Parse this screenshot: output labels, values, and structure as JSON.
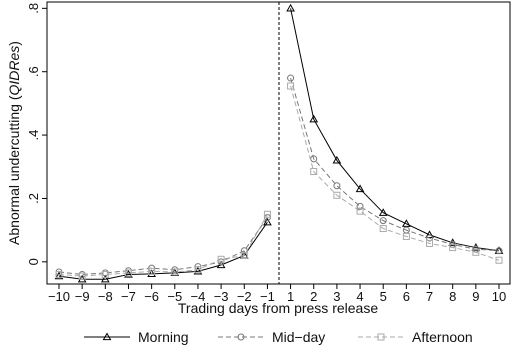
{
  "chart_data": {
    "type": "line",
    "xlabel": "Trading days from press release",
    "ylabel": {
      "prefix": "Abnormal undercutting (",
      "italic": "QIDRes",
      "suffix": ")"
    },
    "x_ticks": [
      "-10",
      "-9",
      "-8",
      "-7",
      "-6",
      "-5",
      "-4",
      "-3",
      "-2",
      "-1",
      "1",
      "2",
      "3",
      "4",
      "5",
      "6",
      "7",
      "8",
      "9",
      "10"
    ],
    "ylim": [
      -0.07,
      0.82
    ],
    "y_ticks": [
      {
        "value": 0,
        "label": "0"
      },
      {
        "value": 0.2,
        "label": ".2"
      },
      {
        "value": 0.4,
        "label": ".4"
      },
      {
        "value": 0.6,
        "label": ".6"
      },
      {
        "value": 0.8,
        "label": ".8"
      }
    ],
    "vertical_divider_between": [
      "-1",
      "1"
    ],
    "grid": false,
    "legend_position": "bottom",
    "series": [
      {
        "name": "Morning",
        "color": "#000000",
        "marker": "triangle",
        "dash": "solid",
        "pre": [
          -0.045,
          -0.055,
          -0.055,
          -0.04,
          -0.038,
          -0.035,
          -0.03,
          -0.01,
          0.02,
          0.125
        ],
        "post": [
          0.8,
          0.45,
          0.32,
          0.23,
          0.155,
          0.12,
          0.085,
          0.06,
          0.045,
          0.035
        ]
      },
      {
        "name": "Mid−day",
        "color": "#777777",
        "marker": "circle",
        "dash": "dashed",
        "pre": [
          -0.032,
          -0.04,
          -0.035,
          -0.028,
          -0.02,
          -0.025,
          -0.015,
          0.0,
          0.035,
          0.14
        ],
        "post": [
          0.58,
          0.325,
          0.24,
          0.175,
          0.13,
          0.1,
          0.075,
          0.055,
          0.04,
          0.035
        ]
      },
      {
        "name": "Afternoon",
        "color": "#aaaaaa",
        "marker": "square",
        "dash": "dashed",
        "pre": [
          -0.04,
          -0.045,
          -0.04,
          -0.035,
          -0.03,
          -0.032,
          -0.025,
          0.008,
          0.02,
          0.15
        ],
        "post": [
          0.555,
          0.285,
          0.21,
          0.16,
          0.105,
          0.08,
          0.058,
          0.045,
          0.03,
          0.005
        ]
      }
    ]
  }
}
